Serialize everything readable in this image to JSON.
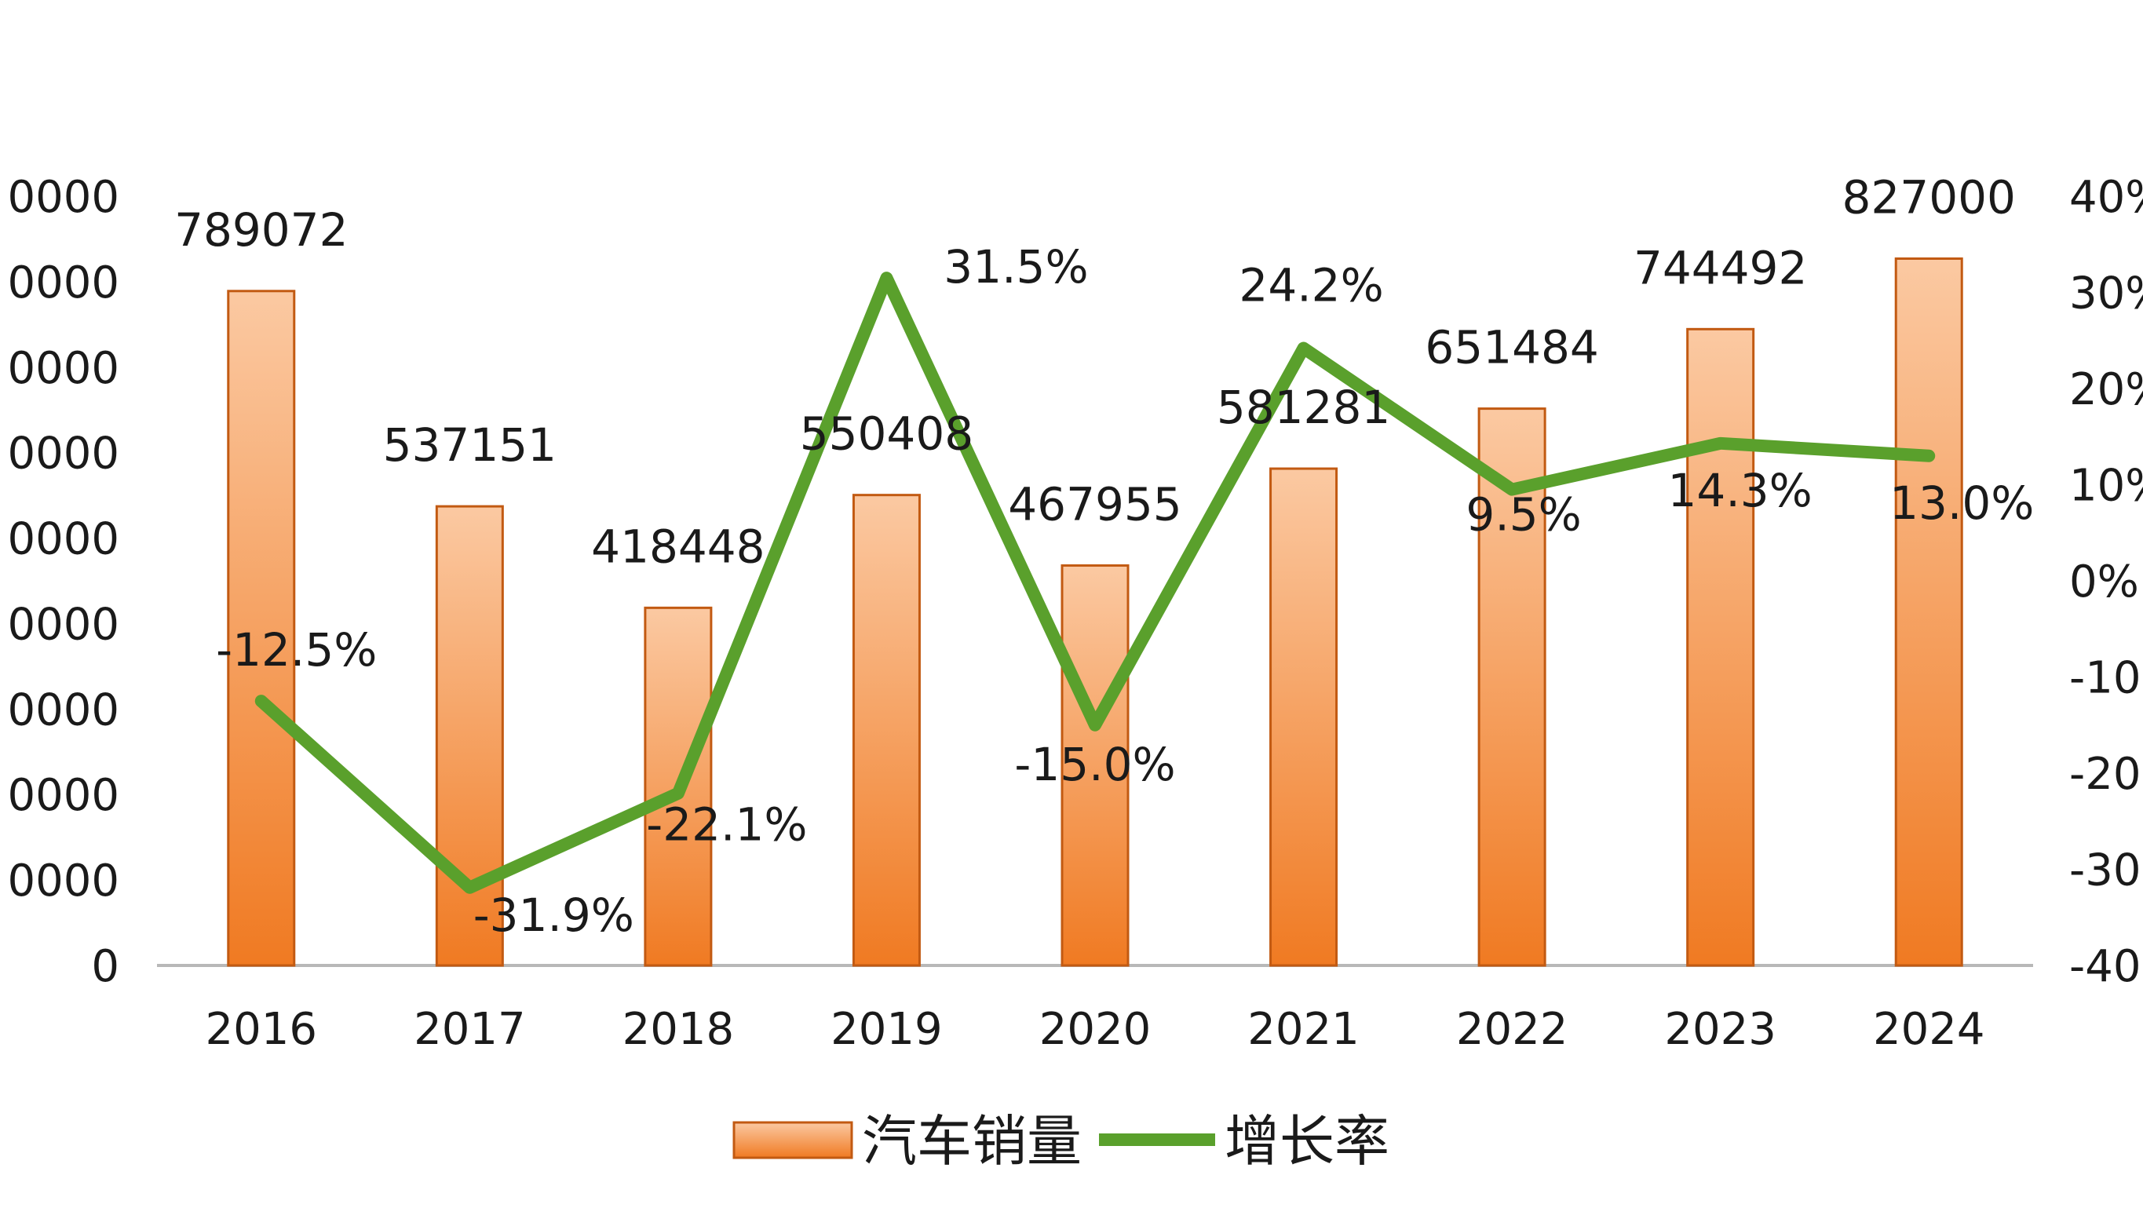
{
  "colors": {
    "bar_top": "#fbc9a2",
    "bar_bottom": "#f07a22",
    "bar_stroke": "#c25a12",
    "line": "#5aa02c",
    "axis": "#b8b8b8",
    "text": "#1a1a1a"
  },
  "chart_data": {
    "type": "bar",
    "categories": [
      "2016",
      "2017",
      "2018",
      "2019",
      "2020",
      "2021",
      "2022",
      "2023",
      "2024"
    ],
    "series": [
      {
        "name": "汽车销量",
        "type": "bar",
        "axis": "left",
        "values": [
          789072,
          537151,
          418448,
          550408,
          467955,
          581281,
          651484,
          744492,
          827000
        ],
        "labels": [
          "789072",
          "537151",
          "418448",
          "550408",
          "467955",
          "581281",
          "651484",
          "744492",
          "827000"
        ]
      },
      {
        "name": "增长率",
        "type": "line",
        "axis": "right",
        "values": [
          -12.5,
          -31.9,
          -22.1,
          31.5,
          -15.0,
          24.2,
          9.5,
          14.3,
          13.0
        ],
        "labels": [
          "-12.5%",
          "-31.9%",
          "-22.1%",
          "31.5%",
          "-15.0%",
          "24.2%",
          "9.5%",
          "14.3%",
          "13.0%"
        ]
      }
    ],
    "left_axis": {
      "ylim": [
        0,
        900000
      ],
      "tick_labels": [
        "0",
        "0000",
        "0000",
        "0000",
        "0000",
        "0000",
        "0000",
        "0000",
        "0000",
        "0000"
      ]
    },
    "right_axis": {
      "ylim": [
        -40,
        40
      ],
      "tick_labels": [
        "-40",
        "-30",
        "-20",
        "-10",
        "0%",
        "10%",
        "20%",
        "30%",
        "40%"
      ]
    },
    "grid": false,
    "legend": {
      "position": "bottom",
      "entries": [
        "汽车销量",
        "增长率"
      ]
    }
  }
}
